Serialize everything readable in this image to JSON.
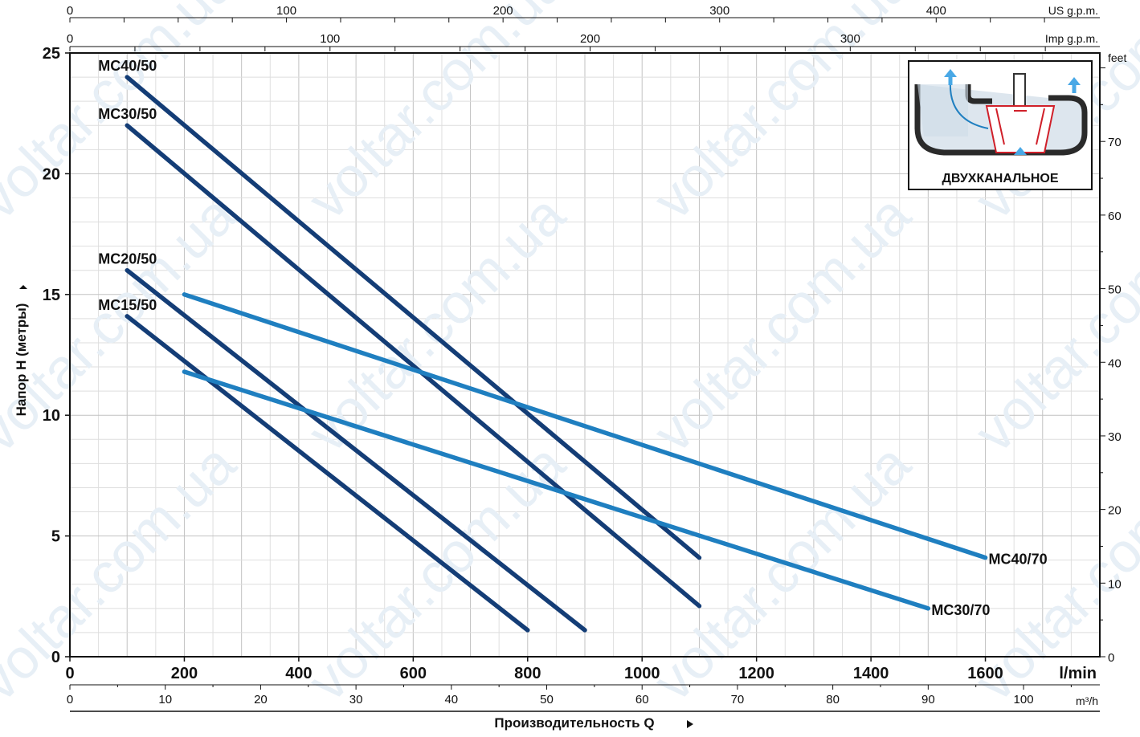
{
  "chart_data": {
    "type": "line",
    "x_unit": "l/min",
    "y_unit": "m",
    "xlim": [
      0,
      1800
    ],
    "ylim": [
      0,
      25
    ],
    "grid": true,
    "legend": "inline-labels",
    "ylabel": "Напор H (метры)",
    "xlabel": "Производительность Q",
    "x_ticks": [
      0,
      200,
      400,
      600,
      800,
      1000,
      1200,
      1400,
      1600
    ],
    "y_ticks": [
      0,
      5,
      10,
      15,
      20,
      25
    ],
    "series": [
      {
        "name": "MC40/50",
        "color": "#143d76",
        "x": [
          100,
          1100
        ],
        "y": [
          24,
          4.1
        ]
      },
      {
        "name": "MC30/50",
        "color": "#143d76",
        "x": [
          100,
          1100
        ],
        "y": [
          22,
          2.1
        ]
      },
      {
        "name": "MC20/50",
        "color": "#143d76",
        "x": [
          100,
          900
        ],
        "y": [
          16,
          1.1
        ]
      },
      {
        "name": "MC15/50",
        "color": "#143d76",
        "x": [
          100,
          800
        ],
        "y": [
          14.1,
          1.1
        ]
      },
      {
        "name": "MC40/70",
        "color": "#1f7fc0",
        "x": [
          200,
          1600
        ],
        "y": [
          15,
          4.1
        ]
      },
      {
        "name": "MC30/70",
        "color": "#1f7fc0",
        "x": [
          200,
          1500
        ],
        "y": [
          11.8,
          2
        ]
      }
    ],
    "secondary_axes": {
      "us_gpm": {
        "label": "US g.p.m.",
        "ticks": [
          0,
          100,
          200,
          300,
          400
        ]
      },
      "imp_gpm": {
        "label": "Imp g.p.m.",
        "ticks": [
          0,
          100,
          200,
          300
        ]
      },
      "feet": {
        "label": "feet",
        "ticks": [
          0,
          10,
          20,
          30,
          40,
          50,
          60,
          70
        ]
      },
      "m3h": {
        "label": "m³/h",
        "ticks": [
          0,
          10,
          20,
          30,
          40,
          50,
          60,
          70,
          80,
          90,
          100
        ]
      }
    },
    "inset": {
      "label": "ДВУХКАНАЛЬНОЕ"
    }
  },
  "watermark": "voltar.com.ua",
  "colors": {
    "dark_series": "#143d76",
    "light_series": "#1f7fc0",
    "grid": "#c8c8c8",
    "inset_red": "#d0202a"
  }
}
